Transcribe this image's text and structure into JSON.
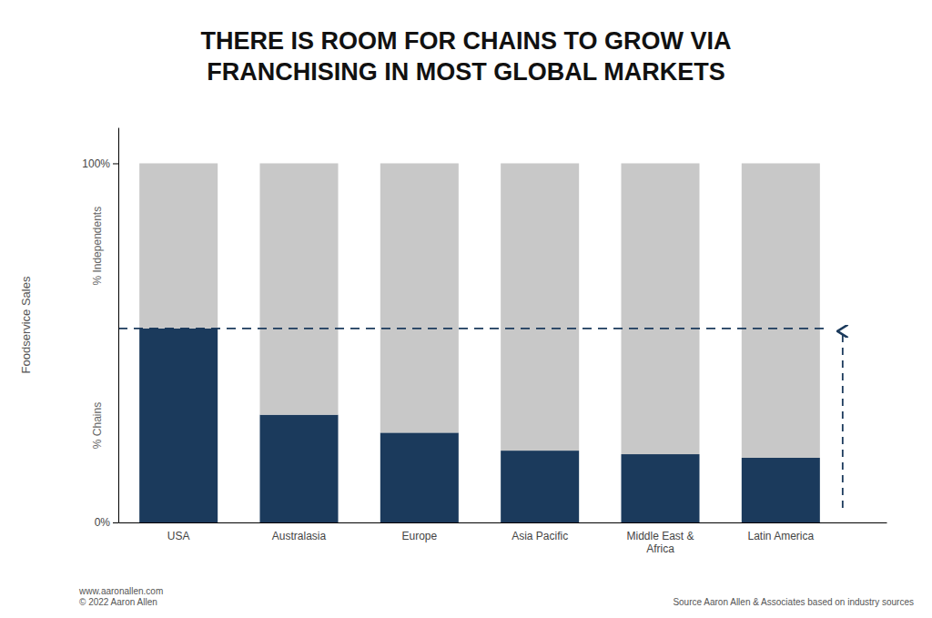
{
  "chart_data": {
    "type": "bar",
    "title": "THERE IS ROOM FOR CHAINS TO GROW VIA\nFRANCHISING IN MOST GLOBAL MARKETS",
    "ylabel": "Foodservice Sales",
    "categories": [
      "USA",
      "Australasia",
      "Europe",
      "Asia Pacific",
      "Middle East &\nAfrica",
      "Latin America"
    ],
    "series": [
      {
        "name": "% Chains",
        "color": "#1b3a5c",
        "values": [
          0.54,
          0.3,
          0.25,
          0.2,
          0.19,
          0.18
        ]
      },
      {
        "name": "% Independents",
        "color": "#c8c8c8",
        "values": [
          0.46,
          0.7,
          0.75,
          0.8,
          0.81,
          0.82
        ]
      }
    ],
    "stacked": true,
    "reference_line": 0.54,
    "ylim": [
      0,
      1.1
    ],
    "yticks": [
      {
        "value": 0,
        "label": "0%"
      },
      {
        "value": 1.0,
        "label": "100%"
      }
    ],
    "grid": false,
    "annotations": [
      "www.aaronallen.com\n© 2022 Aaron Allen",
      "Source Aaron Allen & Associates based on industry sources"
    ]
  }
}
